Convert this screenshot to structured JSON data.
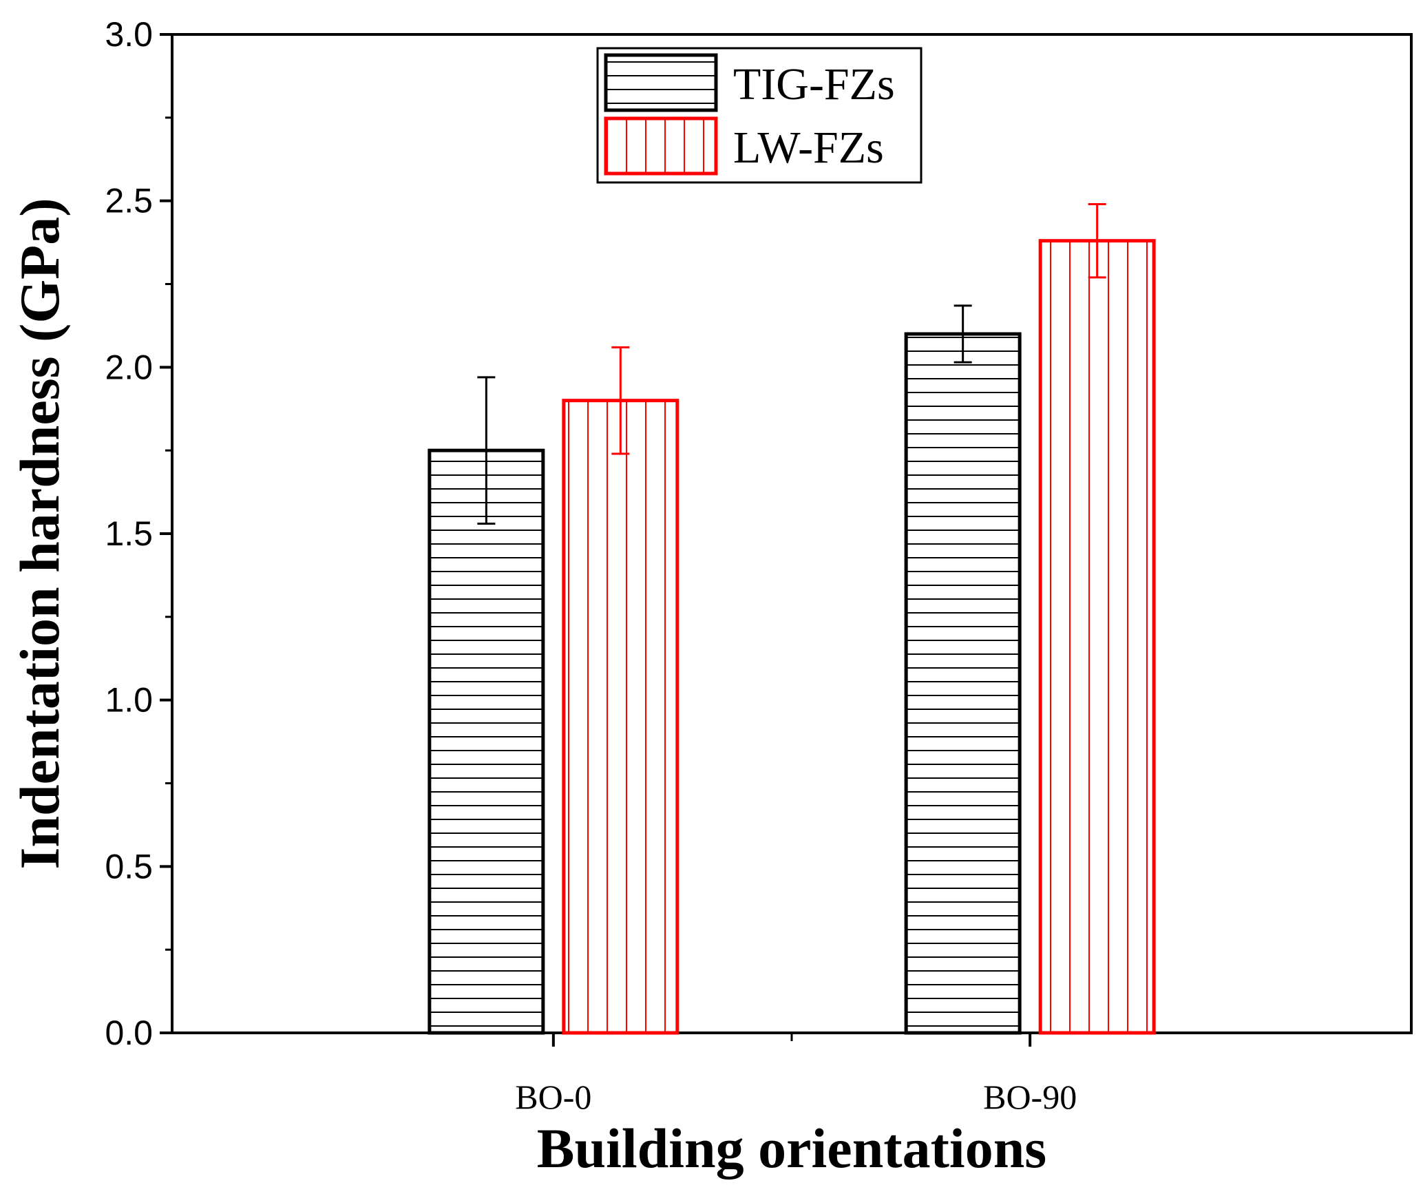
{
  "chart_data": {
    "type": "bar",
    "title": "",
    "xlabel": "Building orientations",
    "ylabel": "Indentation hardness (GPa)",
    "ylim": [
      0,
      3.0
    ],
    "yticks": [
      "0.0",
      "0.5",
      "1.0",
      "1.5",
      "2.0",
      "2.5",
      "3.0"
    ],
    "categories": [
      "BO-0",
      "BO-90"
    ],
    "series": [
      {
        "name": "TIG-FZs",
        "color": "#000000",
        "hatch": "horizontal",
        "values": [
          1.75,
          2.1
        ],
        "errors": [
          0.22,
          0.085
        ]
      },
      {
        "name": "LW-FZs",
        "color": "#ff0000",
        "hatch": "vertical",
        "values": [
          1.9,
          2.38
        ],
        "errors": [
          0.16,
          0.11
        ]
      }
    ],
    "legend_position": "top-center"
  }
}
